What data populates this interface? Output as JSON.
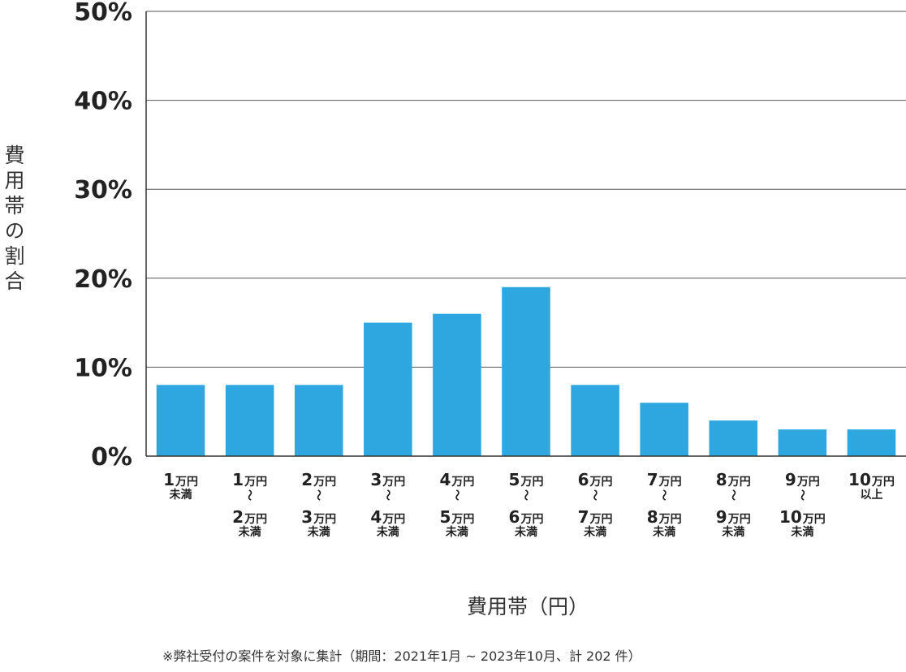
{
  "chart_data": {
    "type": "bar",
    "categories": [
      {
        "lines": [
          [
            "1",
            "万円"
          ],
          [
            "",
            "未満"
          ]
        ]
      },
      {
        "lines": [
          [
            "1",
            "万円"
          ],
          [
            "",
            "〜"
          ],
          [
            "2",
            "万円"
          ],
          [
            "",
            "未満"
          ]
        ]
      },
      {
        "lines": [
          [
            "2",
            "万円"
          ],
          [
            "",
            "〜"
          ],
          [
            "3",
            "万円"
          ],
          [
            "",
            "未満"
          ]
        ]
      },
      {
        "lines": [
          [
            "3",
            "万円"
          ],
          [
            "",
            "〜"
          ],
          [
            "4",
            "万円"
          ],
          [
            "",
            "未満"
          ]
        ]
      },
      {
        "lines": [
          [
            "4",
            "万円"
          ],
          [
            "",
            "〜"
          ],
          [
            "5",
            "万円"
          ],
          [
            "",
            "未満"
          ]
        ]
      },
      {
        "lines": [
          [
            "5",
            "万円"
          ],
          [
            "",
            "〜"
          ],
          [
            "6",
            "万円"
          ],
          [
            "",
            "未満"
          ]
        ]
      },
      {
        "lines": [
          [
            "6",
            "万円"
          ],
          [
            "",
            "〜"
          ],
          [
            "7",
            "万円"
          ],
          [
            "",
            "未満"
          ]
        ]
      },
      {
        "lines": [
          [
            "7",
            "万円"
          ],
          [
            "",
            "〜"
          ],
          [
            "8",
            "万円"
          ],
          [
            "",
            "未満"
          ]
        ]
      },
      {
        "lines": [
          [
            "8",
            "万円"
          ],
          [
            "",
            "〜"
          ],
          [
            "9",
            "万円"
          ],
          [
            "",
            "未満"
          ]
        ]
      },
      {
        "lines": [
          [
            "9",
            "万円"
          ],
          [
            "",
            "〜"
          ],
          [
            "10",
            "万円"
          ],
          [
            "",
            "未満"
          ]
        ]
      },
      {
        "lines": [
          [
            "10",
            "万円"
          ],
          [
            "",
            "以上"
          ]
        ]
      }
    ],
    "values": [
      8,
      8,
      8,
      15,
      16,
      19,
      8,
      6,
      4,
      3,
      3
    ],
    "ylim": [
      0,
      50
    ],
    "yticks": [
      0,
      10,
      20,
      30,
      40,
      50
    ],
    "ytick_labels": [
      "0%",
      "10%",
      "20%",
      "30%",
      "40%",
      "50%"
    ],
    "ylabel": "費用帯の割合",
    "xlabel": "費用帯（円）",
    "grid": true,
    "bar_color": "#2ea7e0"
  },
  "footnote": "※弊社受付の案件を対象に集計（期間：2021年1月 ~ 2023年10月、計 202 件）"
}
